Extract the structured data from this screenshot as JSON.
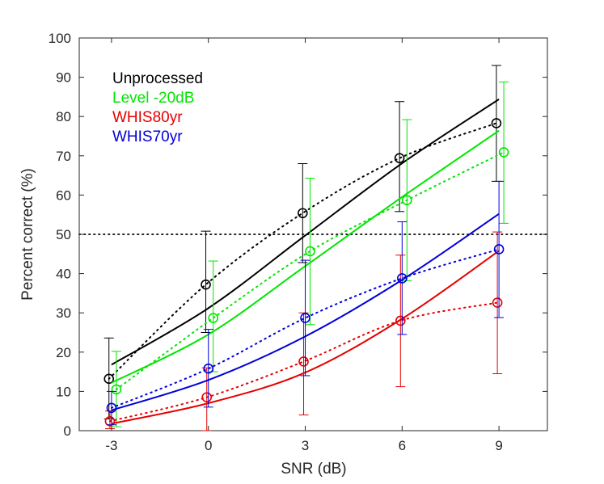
{
  "chart_data": {
    "type": "line",
    "xlabel": "SNR (dB)",
    "ylabel": "Percent correct (%)",
    "xlim": [
      -4,
      10.5
    ],
    "ylim": [
      0,
      100
    ],
    "x_ticks": [
      -3,
      0,
      3,
      6,
      9
    ],
    "x_tick_labels": [
      "-3",
      "0",
      "3",
      "6",
      "9"
    ],
    "y_ticks": [
      0,
      10,
      20,
      30,
      40,
      50,
      60,
      70,
      80,
      90,
      100
    ],
    "y_tick_labels": [
      "0",
      "10",
      "20",
      "30",
      "40",
      "50",
      "60",
      "70",
      "80",
      "90",
      "100"
    ],
    "reference_line_y": 50,
    "legend_position": "top-left",
    "grid": false,
    "series": [
      {
        "name": "Unprocessed",
        "color": "#000000",
        "x": [
          -3,
          0,
          3,
          6,
          9
        ],
        "mean": [
          13.2,
          37.2,
          55.4,
          69.4,
          78.3
        ],
        "err_low": [
          3.0,
          25.0,
          42.8,
          55.8,
          63.5
        ],
        "err_high": [
          23.6,
          50.8,
          68.0,
          83.8,
          93.0
        ],
        "fit": [
          16.8,
          31.2,
          49.7,
          68.1,
          84.4
        ]
      },
      {
        "name": "Level -20dB",
        "color": "#00e600",
        "x": [
          -3,
          0,
          3,
          6,
          9
        ],
        "mean": [
          10.5,
          28.7,
          45.7,
          58.7,
          70.9
        ],
        "err_low": [
          1.0,
          15.0,
          27.0,
          38.2,
          52.8
        ],
        "err_high": [
          20.2,
          43.2,
          64.3,
          79.2,
          88.8
        ],
        "fit": [
          12.2,
          24.5,
          41.9,
          59.5,
          76.4
        ]
      },
      {
        "name": "WHIS80yr",
        "color": "#e60000",
        "x": [
          -3,
          0,
          3,
          6,
          9
        ],
        "mean": [
          2.4,
          8.5,
          17.6,
          28.0,
          32.6
        ],
        "err_low": [
          0.5,
          0.0,
          4.0,
          11.2,
          14.5
        ],
        "err_high": [
          5.0,
          16.0,
          30.0,
          44.7,
          50.6
        ],
        "fit": [
          1.8,
          7.0,
          14.8,
          28.5,
          45.8
        ]
      },
      {
        "name": "WHIS70yr",
        "color": "#0000d9",
        "x": [
          -3,
          0,
          3,
          6,
          9
        ],
        "mean": [
          5.8,
          15.8,
          28.7,
          38.8,
          46.2
        ],
        "err_low": [
          1.5,
          6.0,
          14.0,
          24.5,
          28.8
        ],
        "err_high": [
          10.0,
          25.8,
          43.4,
          53.2,
          63.5
        ],
        "fit": [
          5.2,
          12.9,
          24.0,
          38.4,
          55.2
        ]
      }
    ]
  }
}
